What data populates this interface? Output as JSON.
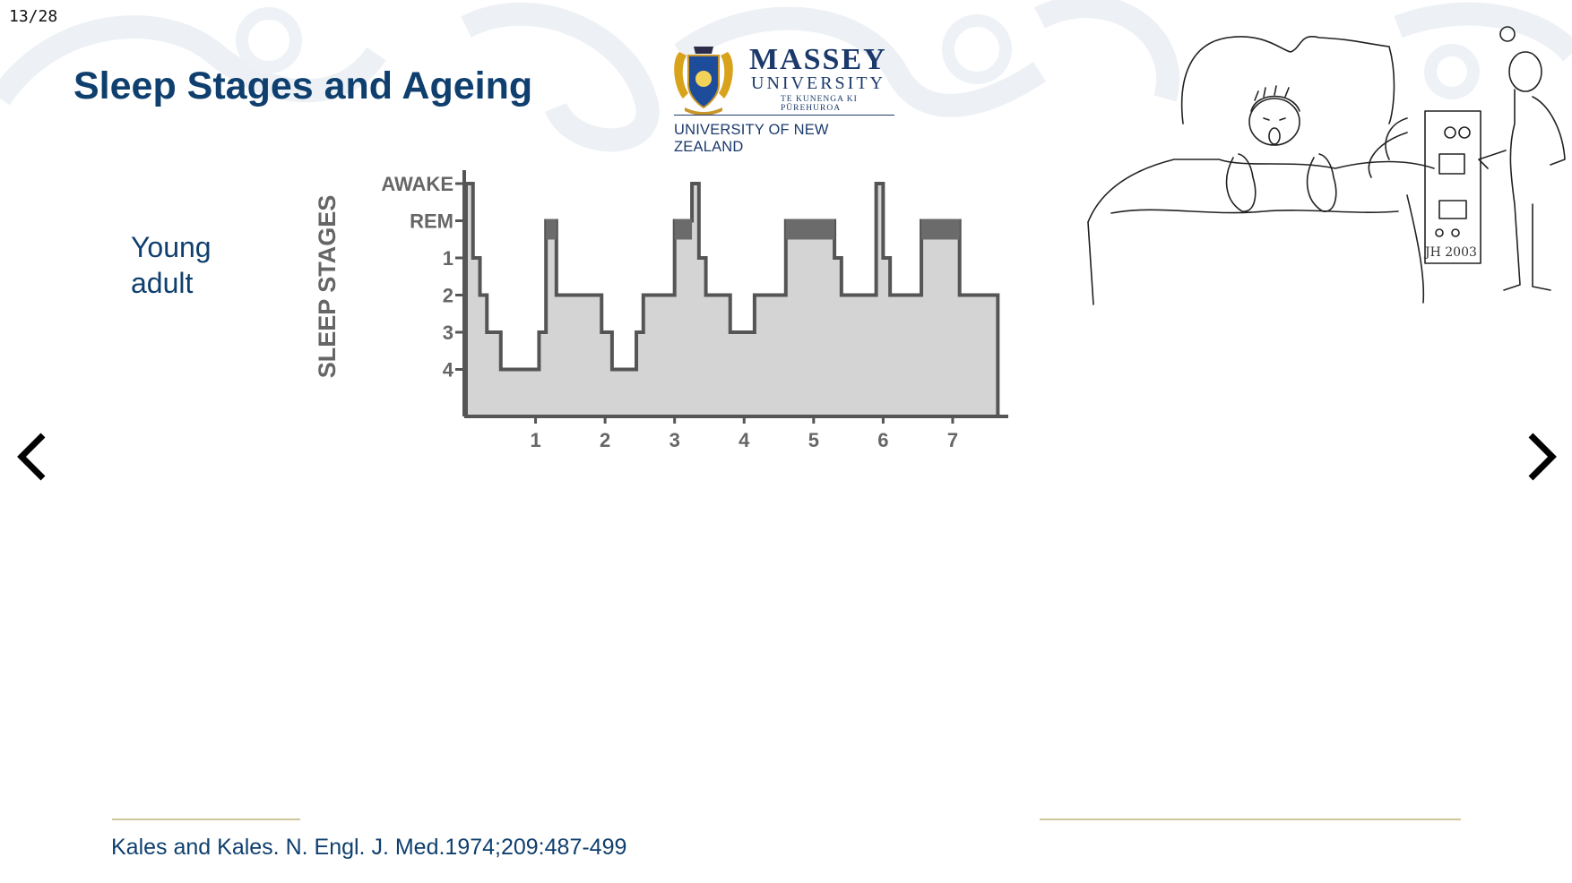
{
  "slide": {
    "counter": "13/28",
    "title": "Sleep Stages and Ageing",
    "label_line1": "Young",
    "label_line2": "adult",
    "reference": "Kales and Kales. N. Engl. J. Med.1974;209:487-499"
  },
  "logo": {
    "line1": "MASSEY",
    "line2": "UNIVERSITY",
    "line3": "TE KUNENGA KI PŪREHUROA",
    "line4": "UNIVERSITY OF NEW ZEALAND"
  },
  "cartoon": {
    "signature": "JH 2003"
  },
  "navigation": {
    "prev_icon": "chevron-left-icon",
    "next_icon": "chevron-right-icon"
  },
  "colors": {
    "title": "#0f3f6e",
    "chart_fill": "#d4d4d4",
    "rem_fill": "#6b6b6b",
    "chart_line": "#555555"
  },
  "chart_data": {
    "type": "area",
    "ylabel": "SLEEP STAGES",
    "xlabel": "",
    "y_categories": [
      "AWAKE",
      "REM",
      "1",
      "2",
      "3",
      "4"
    ],
    "x_ticks": [
      "1",
      "2",
      "3",
      "4",
      "5",
      "6",
      "7"
    ],
    "xlim": [
      0,
      7.8
    ],
    "steps": [
      {
        "x": [
          0.0,
          0.1
        ],
        "stage": "AWAKE"
      },
      {
        "x": [
          0.1,
          0.2
        ],
        "stage": "1"
      },
      {
        "x": [
          0.2,
          0.3
        ],
        "stage": "2"
      },
      {
        "x": [
          0.3,
          0.5
        ],
        "stage": "3"
      },
      {
        "x": [
          0.5,
          1.05
        ],
        "stage": "4"
      },
      {
        "x": [
          1.05,
          1.15
        ],
        "stage": "3"
      },
      {
        "x": [
          1.15,
          1.3
        ],
        "stage": "REM"
      },
      {
        "x": [
          1.3,
          1.95
        ],
        "stage": "2"
      },
      {
        "x": [
          1.95,
          2.1
        ],
        "stage": "3"
      },
      {
        "x": [
          2.1,
          2.45
        ],
        "stage": "4"
      },
      {
        "x": [
          2.45,
          2.55
        ],
        "stage": "3"
      },
      {
        "x": [
          2.55,
          3.0
        ],
        "stage": "2"
      },
      {
        "x": [
          3.0,
          3.25
        ],
        "stage": "REM"
      },
      {
        "x": [
          3.25,
          3.35
        ],
        "stage": "AWAKE"
      },
      {
        "x": [
          3.35,
          3.45
        ],
        "stage": "1"
      },
      {
        "x": [
          3.45,
          3.8
        ],
        "stage": "2"
      },
      {
        "x": [
          3.8,
          4.15
        ],
        "stage": "3"
      },
      {
        "x": [
          4.15,
          4.6
        ],
        "stage": "2"
      },
      {
        "x": [
          4.6,
          5.3
        ],
        "stage": "REM"
      },
      {
        "x": [
          5.3,
          5.4
        ],
        "stage": "1"
      },
      {
        "x": [
          5.4,
          5.9
        ],
        "stage": "2"
      },
      {
        "x": [
          5.9,
          6.0
        ],
        "stage": "AWAKE"
      },
      {
        "x": [
          6.0,
          6.1
        ],
        "stage": "1"
      },
      {
        "x": [
          6.1,
          6.55
        ],
        "stage": "2"
      },
      {
        "x": [
          6.55,
          7.1
        ],
        "stage": "REM"
      },
      {
        "x": [
          7.1,
          7.65
        ],
        "stage": "2"
      }
    ]
  }
}
